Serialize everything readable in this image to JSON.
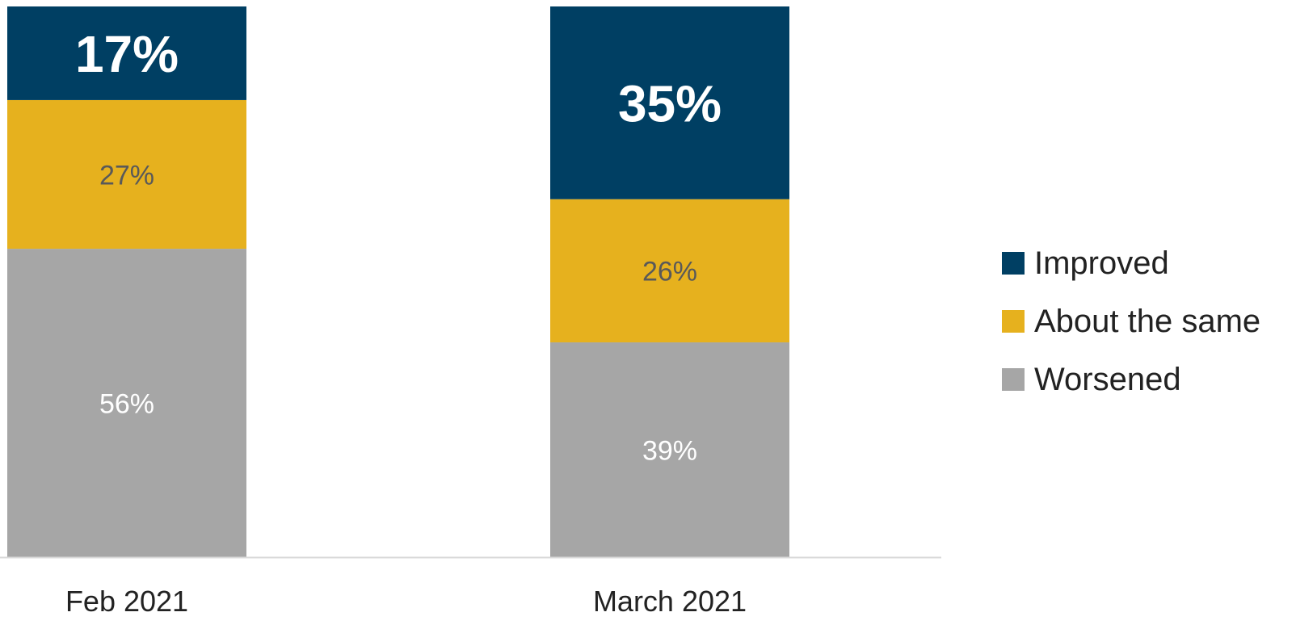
{
  "chart_data": {
    "type": "bar",
    "stacked": true,
    "percent_stacked": true,
    "categories": [
      "Feb 2021",
      "March 2021"
    ],
    "series": [
      {
        "name": "Improved",
        "values": [
          17,
          35
        ],
        "color": "#003F63",
        "label_color": "#FFFFFF",
        "label_bold": true
      },
      {
        "name": "About the same",
        "values": [
          27,
          26
        ],
        "color": "#E6B11E",
        "label_color": "#595959",
        "label_bold": false
      },
      {
        "name": "Worsened",
        "values": [
          56,
          39
        ],
        "color": "#A6A6A6",
        "label_color": "#FFFFFF",
        "label_bold": false
      }
    ],
    "data_labels": [
      [
        "17%",
        "35%"
      ],
      [
        "27%",
        "26%"
      ],
      [
        "56%",
        "39%"
      ]
    ],
    "title": "",
    "xlabel": "",
    "ylabel": "",
    "ylim": [
      0,
      100
    ],
    "grid": false,
    "legend": "right"
  }
}
